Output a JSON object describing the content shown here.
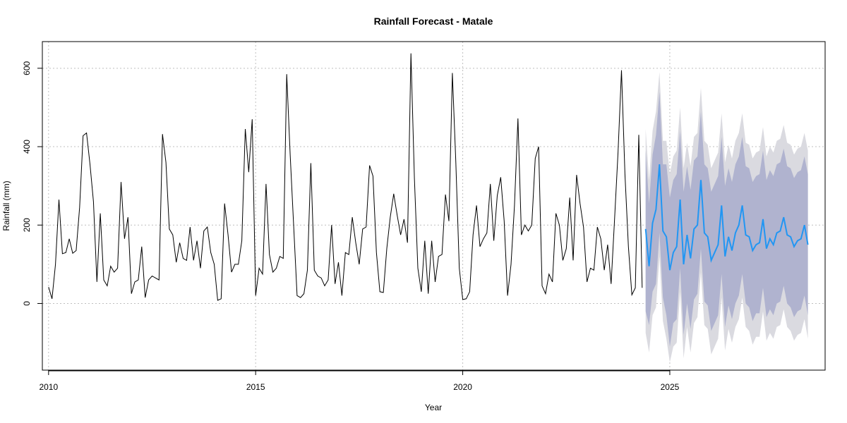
{
  "chart_data": {
    "type": "line",
    "title": "Rainfall Forecast - Matale",
    "xlabel": "Year",
    "ylabel": "Rainfall (mm)",
    "xlim": [
      2009.85,
      2028.75
    ],
    "ylim": [
      -170,
      668
    ],
    "x_ticks": [
      2010,
      2015,
      2020,
      2025
    ],
    "y_ticks": [
      0,
      200,
      400,
      600
    ],
    "grid": true,
    "history": {
      "start_year": 2010,
      "start_month": 1,
      "values": [
        42,
        12,
        100,
        265,
        127,
        130,
        165,
        128,
        135,
        245,
        428,
        435,
        355,
        260,
        55,
        230,
        60,
        45,
        95,
        80,
        90,
        310,
        165,
        220,
        25,
        55,
        60,
        145,
        15,
        60,
        70,
        65,
        60,
        432,
        360,
        190,
        175,
        105,
        155,
        115,
        110,
        195,
        110,
        160,
        90,
        185,
        195,
        130,
        100,
        8,
        12,
        255,
        175,
        80,
        100,
        100,
        160,
        445,
        335,
        470,
        20,
        90,
        75,
        305,
        125,
        80,
        90,
        120,
        115,
        585,
        380,
        200,
        20,
        15,
        25,
        85,
        358,
        85,
        70,
        65,
        45,
        60,
        200,
        50,
        105,
        20,
        130,
        125,
        220,
        155,
        100,
        190,
        195,
        352,
        325,
        130,
        30,
        28,
        140,
        220,
        280,
        225,
        175,
        215,
        155,
        638,
        320,
        90,
        30,
        160,
        25,
        160,
        55,
        120,
        125,
        278,
        210,
        588,
        360,
        90,
        10,
        12,
        30,
        175,
        250,
        145,
        165,
        180,
        305,
        160,
        275,
        322,
        210,
        20,
        100,
        250,
        472,
        175,
        200,
        185,
        200,
        370,
        400,
        45,
        25,
        75,
        55,
        230,
        200,
        110,
        140,
        270,
        110,
        328,
        255,
        195,
        55,
        90,
        85,
        195,
        165,
        85,
        150,
        50,
        215,
        385,
        595,
        330,
        145,
        22,
        40,
        430,
        40
      ]
    },
    "forecast": {
      "start_year": 2024,
      "start_month": 6,
      "mean": [
        190,
        95,
        205,
        240,
        355,
        185,
        170,
        85,
        130,
        145,
        265,
        100,
        175,
        115,
        190,
        200,
        315,
        180,
        170,
        110,
        130,
        150,
        250,
        120,
        170,
        135,
        180,
        200,
        250,
        175,
        170,
        135,
        150,
        155,
        215,
        140,
        165,
        150,
        180,
        185,
        220,
        175,
        170,
        145,
        160,
        165,
        200,
        150
      ],
      "lo80": [
        -20,
        -55,
        30,
        50,
        180,
        15,
        -30,
        -110,
        -50,
        -40,
        90,
        -80,
        0,
        -65,
        10,
        25,
        140,
        5,
        -5,
        -70,
        -50,
        -30,
        75,
        -60,
        -5,
        -40,
        0,
        20,
        75,
        0,
        -10,
        -45,
        -25,
        -25,
        40,
        -35,
        -15,
        -30,
        0,
        5,
        45,
        0,
        -10,
        -35,
        -20,
        -15,
        20,
        -30
      ],
      "hi80": [
        390,
        255,
        380,
        430,
        540,
        355,
        355,
        270,
        315,
        330,
        440,
        285,
        350,
        290,
        365,
        375,
        490,
        355,
        345,
        285,
        305,
        325,
        425,
        300,
        345,
        310,
        355,
        375,
        425,
        350,
        345,
        310,
        325,
        330,
        390,
        315,
        340,
        325,
        355,
        360,
        395,
        350,
        345,
        320,
        335,
        340,
        375,
        330
      ],
      "lo95": [
        -75,
        -125,
        -30,
        -10,
        120,
        -45,
        -90,
        -150,
        -110,
        -100,
        30,
        -140,
        -60,
        -125,
        -50,
        -35,
        80,
        -55,
        -65,
        -130,
        -110,
        -90,
        15,
        -120,
        -65,
        -100,
        -60,
        -40,
        15,
        -60,
        -70,
        -105,
        -85,
        -85,
        -20,
        -95,
        -75,
        -90,
        -60,
        -55,
        -15,
        -60,
        -70,
        -95,
        -80,
        -75,
        -40,
        -90
      ],
      "hi95": [
        445,
        315,
        440,
        490,
        590,
        415,
        415,
        330,
        375,
        390,
        500,
        345,
        410,
        350,
        425,
        435,
        550,
        415,
        405,
        345,
        365,
        385,
        485,
        360,
        405,
        370,
        415,
        435,
        485,
        410,
        405,
        370,
        385,
        390,
        450,
        375,
        400,
        385,
        415,
        420,
        455,
        410,
        405,
        380,
        395,
        400,
        435,
        390
      ]
    },
    "colors": {
      "history": "#000000",
      "forecast": "#2196f3",
      "band80": "#b0b3cf",
      "band95": "#dadae0"
    }
  }
}
